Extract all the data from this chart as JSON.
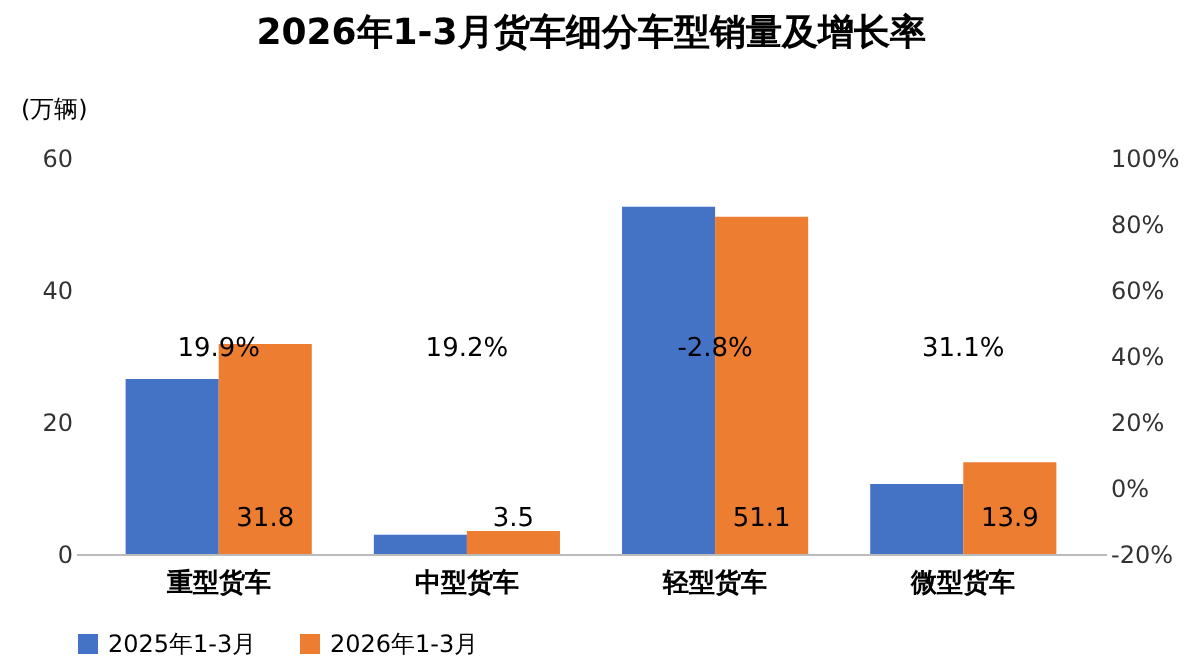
{
  "chart_data": {
    "type": "bar",
    "title": "2026年1-3月货车细分车型销量及增长率",
    "ylabel": "(万辆)",
    "categories": [
      "重型货车",
      "中型货车",
      "轻型货车",
      "微型货车"
    ],
    "series": [
      {
        "name": "2025年1-3月",
        "color": "#4472c4",
        "values": [
          26.5,
          2.9,
          52.6,
          10.6
        ]
      },
      {
        "name": "2026年1-3月",
        "color": "#ed7d31",
        "values": [
          31.8,
          3.5,
          51.1,
          13.9
        ],
        "value_labels": [
          "31.8",
          "3.5",
          "51.1",
          "13.9"
        ]
      }
    ],
    "ylim": [
      0,
      60
    ],
    "yticks": [
      0,
      20,
      40,
      60
    ],
    "y2lim": [
      -20,
      100
    ],
    "y2ticks": [
      {
        "value": -20,
        "label": "-20%"
      },
      {
        "value": 0,
        "label": "0%"
      },
      {
        "value": 20,
        "label": "20%"
      },
      {
        "value": 40,
        "label": "40%"
      },
      {
        "value": 60,
        "label": "60%"
      },
      {
        "value": 80,
        "label": "80%"
      },
      {
        "value": 100,
        "label": "100%"
      }
    ],
    "annotations": [
      "19.9%",
      "19.2%",
      "-2.8%",
      "31.1%"
    ],
    "grid": false,
    "legend": "bottom"
  }
}
